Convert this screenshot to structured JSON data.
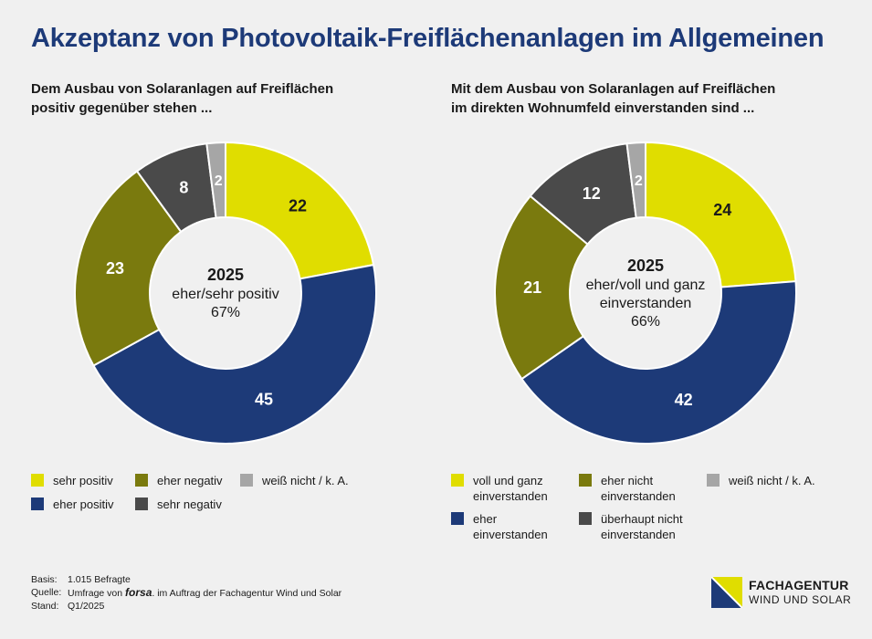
{
  "title": "Akzeptanz von Photovoltaik-Freiflächenanlagen im Allgemeinen",
  "charts": [
    {
      "subtitle_line1": "Dem Ausbau von Solaranlagen auf Freiflächen",
      "subtitle_line2": "positiv gegenüber stehen ...",
      "center_year": "2025",
      "center_line1": "eher/sehr positiv",
      "center_line2": "67%",
      "legend": [
        {
          "line1": "sehr positiv",
          "line2": ""
        },
        {
          "line1": "eher positiv",
          "line2": ""
        },
        {
          "line1": "eher negativ",
          "line2": ""
        },
        {
          "line1": "sehr negativ",
          "line2": ""
        },
        {
          "line1": "weiß nicht / k. A.",
          "line2": ""
        }
      ]
    },
    {
      "subtitle_line1": "Mit dem Ausbau von Solaranlagen auf Freiflächen",
      "subtitle_line2": "im direkten Wohnumfeld einverstanden sind ...",
      "center_year": "2025",
      "center_line1": "eher/voll und ganz",
      "center_line2": "einverstanden",
      "center_line3": "66%",
      "legend": [
        {
          "line1": "voll und ganz",
          "line2": "einverstanden"
        },
        {
          "line1": "eher",
          "line2": "einverstanden"
        },
        {
          "line1": "eher nicht",
          "line2": "einverstanden"
        },
        {
          "line1": "überhaupt nicht",
          "line2": "einverstanden"
        },
        {
          "line1": "weiß nicht / k. A.",
          "line2": ""
        }
      ]
    }
  ],
  "colors": {
    "c1": "#e0dd00",
    "c2": "#1d3a78",
    "c3": "#7a7a0e",
    "c4": "#4a4a4a",
    "c5": "#a6a6a6",
    "title": "#1d3a78"
  },
  "chart_data": [
    {
      "type": "pie",
      "categories": [
        "sehr positiv",
        "eher positiv",
        "eher negativ",
        "sehr negativ",
        "weiß nicht / k. A."
      ],
      "values": [
        22,
        45,
        23,
        8,
        2
      ],
      "title": "Dem Ausbau von Solaranlagen auf Freiflächen positiv gegenüber stehen ..."
    },
    {
      "type": "pie",
      "categories": [
        "voll und ganz einverstanden",
        "eher einverstanden",
        "eher nicht einverstanden",
        "überhaupt nicht einverstanden",
        "weiß nicht / k. A."
      ],
      "values": [
        24,
        42,
        21,
        12,
        2
      ],
      "title": "Mit dem Ausbau von Solaranlagen auf Freiflächen im direkten Wohnumfeld einverstanden sind ..."
    }
  ],
  "footer": {
    "basis_label": "Basis:",
    "basis_value": "1.015 Befragte",
    "quelle_label": "Quelle:",
    "quelle_pre": "Umfrage von",
    "quelle_brand": "forsa",
    "quelle_post": ". im Auftrag der Fachagentur Wind und Solar",
    "stand_label": "Stand:",
    "stand_value": "Q1/2025"
  },
  "logo": {
    "line1": "FACHAGENTUR",
    "line2": "WIND UND SOLAR"
  }
}
